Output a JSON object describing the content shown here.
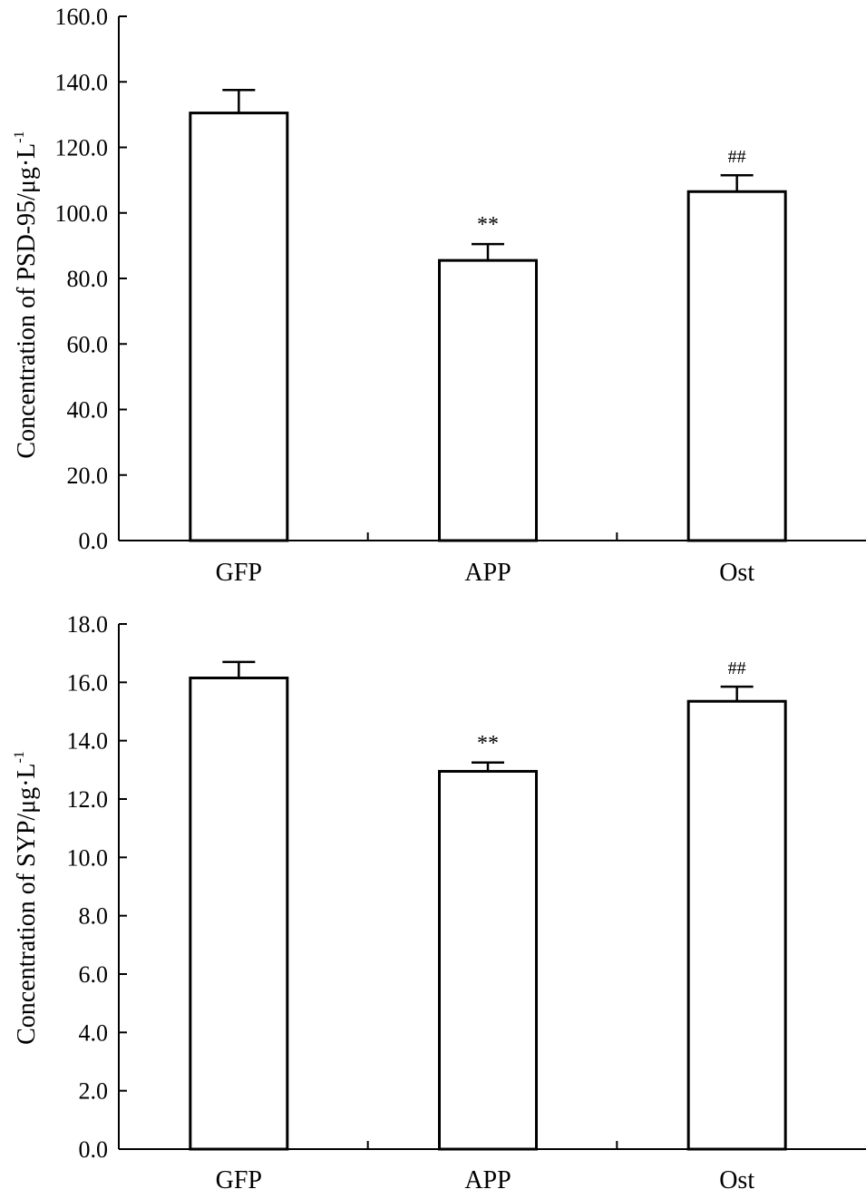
{
  "figure": {
    "colors": {
      "bar_fill": "#ffffff",
      "stroke": "#000000",
      "background": "#ffffff"
    }
  },
  "chart_data": [
    {
      "type": "bar",
      "categories": [
        "GFP",
        "APP",
        "Ost"
      ],
      "values": [
        130.5,
        85.5,
        106.5
      ],
      "errors": [
        7.0,
        5.0,
        5.0
      ],
      "annotations": [
        "",
        "**",
        "##"
      ],
      "ylim": [
        0,
        160
      ],
      "yticks": [
        "0.0",
        "20.0",
        "40.0",
        "60.0",
        "80.0",
        "100.0",
        "120.0",
        "140.0",
        "160.0"
      ],
      "ylabel_main": "Concentration of PSD-95/μg·L",
      "ylabel_sup": "-1",
      "xlabel": "",
      "title": "",
      "grid": false,
      "legend": "none"
    },
    {
      "type": "bar",
      "categories": [
        "GFP",
        "APP",
        "Ost"
      ],
      "values": [
        16.15,
        12.95,
        15.35
      ],
      "errors": [
        0.55,
        0.3,
        0.5
      ],
      "annotations": [
        "",
        "**",
        "##"
      ],
      "ylim": [
        0,
        18
      ],
      "yticks": [
        "0.0",
        "2.0",
        "4.0",
        "6.0",
        "8.0",
        "10.0",
        "12.0",
        "14.0",
        "16.0",
        "18.0"
      ],
      "ylabel_main": "Concentration of SYP/μg·L",
      "ylabel_sup": "-1",
      "xlabel": "",
      "title": "",
      "grid": false,
      "legend": "none"
    }
  ]
}
